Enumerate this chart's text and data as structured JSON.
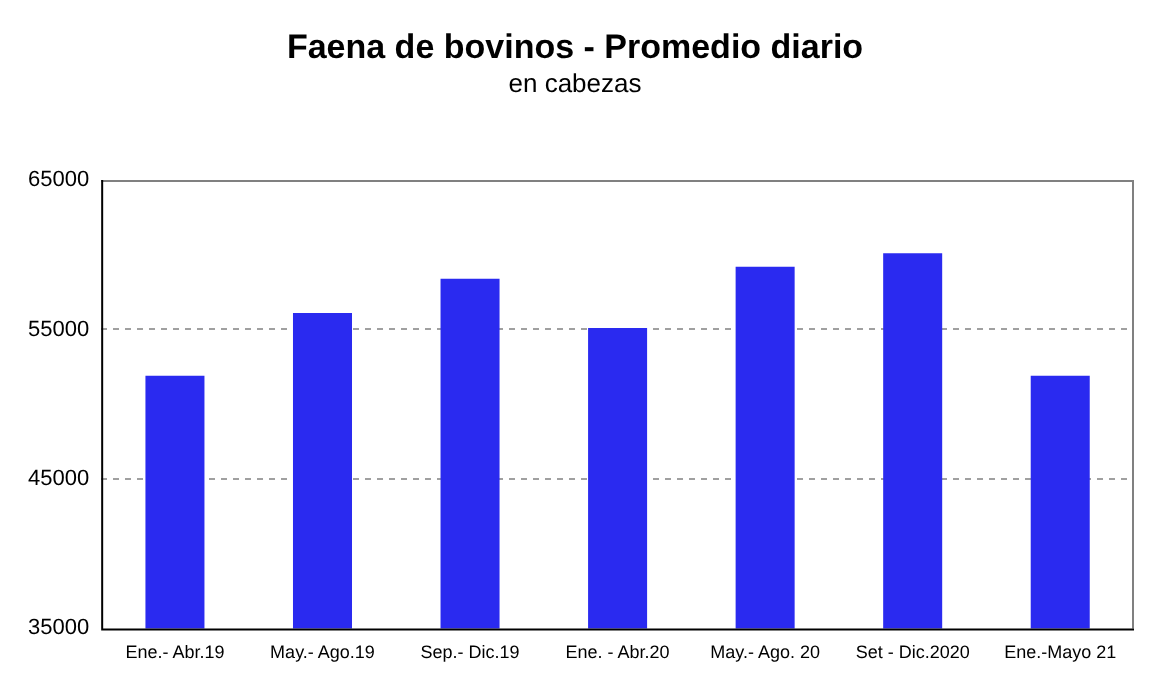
{
  "chart_data": {
    "type": "bar",
    "title": "Faena de bovinos - Promedio diario",
    "subtitle": "en cabezas",
    "categories": [
      "Ene.- Abr.19",
      "May.- Ago.19",
      "Sep.- Dic.19",
      "Ene. - Abr.20",
      "May.- Ago. 20",
      "Set - Dic.2020",
      "Ene.-Mayo 21"
    ],
    "values": [
      51900,
      56100,
      58400,
      55100,
      59200,
      60100,
      51900
    ],
    "color": "#2a2af0",
    "ylim": [
      35000,
      65000
    ],
    "yticks": [
      35000,
      45000,
      55000,
      65000
    ],
    "grid": "y",
    "legend": false
  }
}
